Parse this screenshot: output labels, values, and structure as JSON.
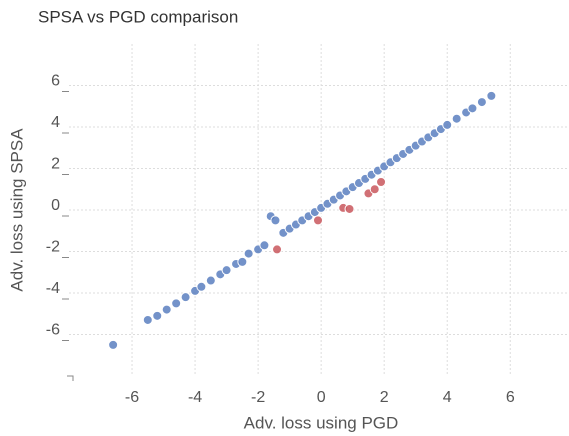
{
  "chart_data": {
    "type": "scatter",
    "title": "SPSA vs PGD comparison",
    "x_label": "Adv. loss using PGD",
    "y_label": "Adv. loss using SPSA",
    "xlim": [
      -8,
      7.8
    ],
    "ylim": [
      -8,
      8
    ],
    "xticks": [
      -6,
      -4,
      -2,
      0,
      2,
      4,
      6
    ],
    "yticks": [
      -6,
      -4,
      -2,
      0,
      2,
      4,
      6
    ],
    "grid": true,
    "series": [
      {
        "color": "#5b7fbf",
        "x": [
          -6.6,
          -5.5,
          -5.2,
          -4.9,
          -4.6,
          -4.3,
          -4.0,
          -3.8,
          -3.5,
          -3.2,
          -3.0,
          -2.7,
          -2.5,
          -2.3,
          -2.0,
          -1.8,
          -1.6,
          -1.45,
          -1.2,
          -1.0,
          -0.8,
          -0.6,
          -0.4,
          -0.2,
          0.0,
          0.2,
          0.4,
          0.6,
          0.8,
          1.0,
          1.2,
          1.4,
          1.6,
          1.8,
          2.0,
          2.2,
          2.4,
          2.6,
          2.8,
          3.0,
          3.2,
          3.4,
          3.6,
          3.8,
          4.0,
          4.3,
          4.6,
          4.8,
          5.1,
          5.4
        ],
        "values": [
          -6.5,
          -5.3,
          -5.1,
          -4.8,
          -4.5,
          -4.2,
          -3.9,
          -3.7,
          -3.4,
          -3.1,
          -2.9,
          -2.6,
          -2.5,
          -2.1,
          -1.9,
          -1.7,
          -0.3,
          -0.5,
          -1.1,
          -0.9,
          -0.7,
          -0.5,
          -0.3,
          -0.1,
          0.1,
          0.3,
          0.5,
          0.7,
          0.9,
          1.1,
          1.3,
          1.5,
          1.7,
          1.9,
          2.1,
          2.3,
          2.5,
          2.7,
          2.9,
          3.1,
          3.3,
          3.5,
          3.7,
          3.9,
          4.1,
          4.4,
          4.7,
          4.9,
          5.2,
          5.5
        ]
      },
      {
        "color": "#c9575d",
        "x": [
          -1.4,
          -0.1,
          0.7,
          0.9,
          1.5,
          1.7,
          1.9
        ],
        "values": [
          -1.9,
          -0.5,
          0.1,
          0.05,
          0.8,
          1.0,
          1.35
        ]
      }
    ]
  }
}
